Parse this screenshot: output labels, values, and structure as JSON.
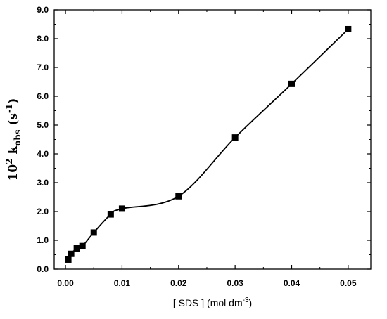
{
  "chart_data": {
    "type": "scatter",
    "xlabel": {
      "main": "[ SDS ] (mol dm",
      "sup": "-3",
      "tail": ")"
    },
    "ylabel": {
      "p1": "10",
      "p1_sup": "2",
      "p2": " k",
      "p2_sub": "obs",
      "p3": " (s",
      "p3_sup": "-1",
      "p4": ")"
    },
    "xlim": [
      -0.002,
      0.054
    ],
    "ylim": [
      0.0,
      9.0
    ],
    "x_ticks": [
      0.0,
      0.01,
      0.02,
      0.03,
      0.04,
      0.05
    ],
    "x_tick_labels": [
      "0.00",
      "0.01",
      "0.02",
      "0.03",
      "0.04",
      "0.05"
    ],
    "y_ticks": [
      0.0,
      1.0,
      2.0,
      3.0,
      4.0,
      5.0,
      6.0,
      7.0,
      8.0,
      9.0
    ],
    "y_tick_labels": [
      "0.0",
      "1.0",
      "2.0",
      "3.0",
      "4.0",
      "5.0",
      "6.0",
      "7.0",
      "8.0",
      "9.0"
    ],
    "grid": false,
    "marker": "square",
    "color": "#000000",
    "series": [
      {
        "x": [
          0.0005,
          0.001,
          0.002,
          0.003,
          0.005,
          0.008,
          0.01,
          0.02,
          0.03,
          0.04,
          0.05
        ],
        "y": [
          0.33,
          0.53,
          0.72,
          0.8,
          1.27,
          1.9,
          2.1,
          2.53,
          4.57,
          6.43,
          8.33
        ]
      }
    ]
  }
}
